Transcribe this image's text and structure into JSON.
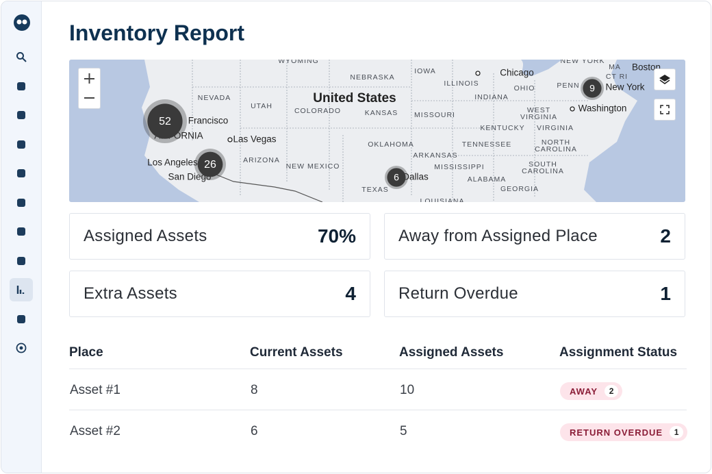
{
  "header": {
    "title": "Inventory Report"
  },
  "map": {
    "labels": [
      "WYOMING",
      "NEBRASKA",
      "IOWA",
      "Chicago",
      "ILLINOIS",
      "OHIO",
      "NEW YORK",
      "MA",
      "Boston",
      "CT RI",
      "PENN",
      "New York",
      "INDIANA",
      "NEVADA",
      "UTAH",
      "United States",
      "COLORADO",
      "KANSAS",
      "MISSOURI",
      "WEST",
      "VIRGINIA",
      "Washington",
      "Francisco",
      "ALIFORNIA",
      "KENTUCKY",
      "VIRGINIA",
      "Las Vegas",
      "OKLAHOMA",
      "TENNESSEE",
      "NORTH",
      "CAROLINA",
      "ARKANSAS",
      "ARIZONA",
      "NEW MEXICO",
      "MISSISSIPPI",
      "SOUTH",
      "CAROLINA",
      "Los Angeles",
      "San Diego",
      "ALABAMA",
      "Dallas",
      "TEXAS",
      "GEORGIA",
      "LOUISIANA"
    ],
    "clusters": [
      52,
      26,
      6,
      9
    ]
  },
  "stats": [
    {
      "label": "Assigned Assets",
      "value": "70%"
    },
    {
      "label": "Away from Assigned Place",
      "value": 2
    },
    {
      "label": "Extra Assets",
      "value": 4
    },
    {
      "label": "Return Overdue",
      "value": 1
    }
  ],
  "table": {
    "columns": [
      "Place",
      "Current Assets",
      "Assigned Assets",
      "Assignment Status"
    ],
    "rows": [
      [
        "Asset #1",
        8,
        10,
        {
          "status": "AWAY",
          "count": 2
        }
      ],
      [
        "Asset #2",
        6,
        5,
        {
          "status": "RETURN OVERDUE",
          "count": 1
        }
      ]
    ]
  }
}
